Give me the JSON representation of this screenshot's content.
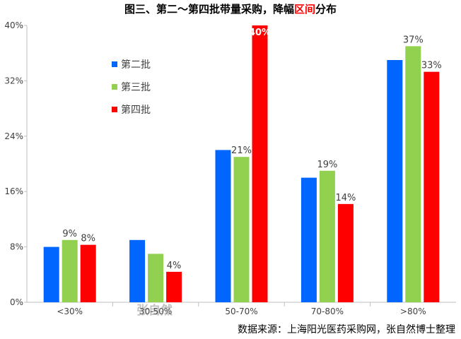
{
  "title": {
    "before": "图三、第二～第四批带量采购，降幅",
    "highlight": "区间",
    "after": "分布"
  },
  "source_note": "数据来源：上海阳光医药采购网，张自然博士整理",
  "watermark": "张自然",
  "colors": {
    "series": [
      "#0066ff",
      "#92d050",
      "#ff0000"
    ],
    "axis": "#bfbfbf",
    "text": "#404040"
  },
  "chart_data": {
    "type": "bar",
    "categories": [
      "<30%",
      "30-50%",
      "50-70%",
      "70-80%",
      ">80%"
    ],
    "series": [
      {
        "name": "第二批",
        "values": [
          8,
          9,
          22,
          18,
          35
        ]
      },
      {
        "name": "第三批",
        "values": [
          9,
          7,
          21,
          19,
          37
        ]
      },
      {
        "name": "第四批",
        "values": [
          8.3,
          4.4,
          40,
          14.2,
          33.3
        ]
      }
    ],
    "data_labels": [
      [
        "",
        "",
        "",
        "",
        ""
      ],
      [
        "9%",
        "",
        "21%",
        "19%",
        "37%"
      ],
      [
        "8%",
        "4%",
        "40%",
        "14%",
        "33%"
      ]
    ],
    "yticks": [
      "0%",
      "8%",
      "16%",
      "24%",
      "32%",
      "40%"
    ],
    "ylim": [
      0,
      40
    ],
    "legend_position": "top-left",
    "grid": false
  }
}
